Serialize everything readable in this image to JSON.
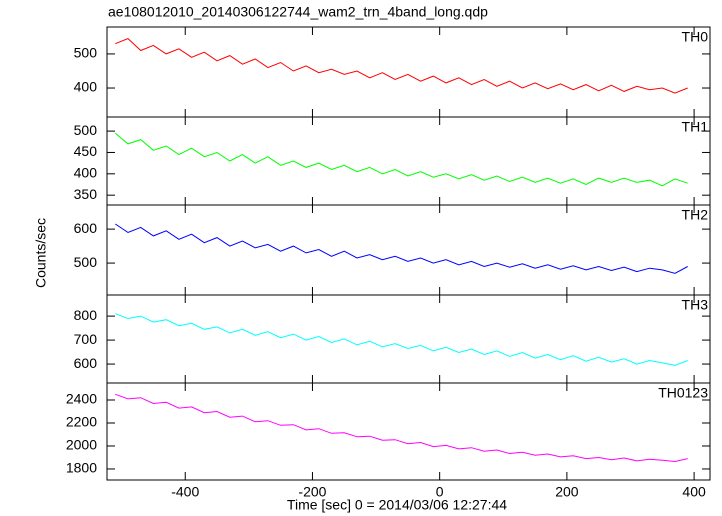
{
  "chart_data": {
    "type": "line",
    "title": "ae108012010_20140306122744_wam2_trn_4band_long.qdp",
    "xlabel": "Time [sec] 0 = 2014/03/06 12:27:44",
    "ylabel": "Counts/sec",
    "x": [
      -510,
      -490,
      -470,
      -450,
      -430,
      -410,
      -390,
      -370,
      -350,
      -330,
      -310,
      -290,
      -270,
      -250,
      -230,
      -210,
      -190,
      -170,
      -150,
      -130,
      -110,
      -90,
      -70,
      -50,
      -30,
      -10,
      10,
      30,
      50,
      70,
      90,
      110,
      130,
      150,
      170,
      190,
      210,
      230,
      250,
      270,
      290,
      310,
      330,
      350,
      370,
      390
    ],
    "xlim": [
      -523,
      425
    ],
    "xticks": [
      -400,
      -200,
      0,
      200,
      400
    ],
    "series": [
      {
        "name": "TH0",
        "color": "#ff0000",
        "ylim": [
          315,
          579
        ],
        "yticks": [
          400,
          500
        ],
        "values": [
          530,
          545,
          510,
          525,
          500,
          515,
          490,
          505,
          480,
          495,
          470,
          485,
          460,
          475,
          450,
          465,
          445,
          455,
          440,
          450,
          430,
          445,
          425,
          440,
          420,
          435,
          415,
          430,
          410,
          425,
          405,
          420,
          400,
          415,
          398,
          412,
          395,
          410,
          392,
          408,
          390,
          405,
          395,
          400,
          385,
          400
        ]
      },
      {
        "name": "TH1",
        "color": "#00ff00",
        "ylim": [
          327,
          533
        ],
        "yticks": [
          350,
          400,
          450,
          500
        ],
        "values": [
          495,
          470,
          480,
          455,
          465,
          445,
          460,
          440,
          450,
          430,
          445,
          425,
          440,
          420,
          430,
          415,
          425,
          410,
          420,
          405,
          415,
          400,
          410,
          395,
          405,
          392,
          400,
          388,
          398,
          385,
          395,
          382,
          392,
          380,
          390,
          378,
          388,
          375,
          390,
          380,
          390,
          380,
          385,
          372,
          388,
          378
        ]
      },
      {
        "name": "TH2",
        "color": "#0000ff",
        "ylim": [
          406,
          671
        ],
        "yticks": [
          500,
          600
        ],
        "values": [
          615,
          590,
          605,
          580,
          595,
          570,
          585,
          560,
          575,
          550,
          565,
          545,
          555,
          535,
          550,
          530,
          540,
          520,
          535,
          515,
          525,
          510,
          520,
          505,
          515,
          500,
          510,
          495,
          505,
          490,
          500,
          488,
          498,
          485,
          495,
          482,
          492,
          480,
          490,
          478,
          488,
          475,
          485,
          480,
          470,
          490
        ]
      },
      {
        "name": "TH3",
        "color": "#00ffff",
        "ylim": [
          521,
          888
        ],
        "yticks": [
          600,
          700,
          800
        ],
        "values": [
          810,
          790,
          800,
          775,
          785,
          760,
          770,
          745,
          755,
          730,
          745,
          720,
          735,
          710,
          725,
          700,
          715,
          690,
          705,
          680,
          695,
          672,
          685,
          665,
          678,
          655,
          670,
          648,
          662,
          640,
          655,
          632,
          648,
          625,
          640,
          618,
          635,
          612,
          628,
          608,
          622,
          600,
          615,
          605,
          595,
          615
        ]
      },
      {
        "name": "TH0123",
        "color": "#ff00ff",
        "ylim": [
          1704,
          2548
        ],
        "yticks": [
          1800,
          2000,
          2200,
          2400
        ],
        "values": [
          2450,
          2410,
          2420,
          2370,
          2380,
          2330,
          2340,
          2290,
          2300,
          2250,
          2260,
          2210,
          2220,
          2180,
          2185,
          2140,
          2150,
          2110,
          2115,
          2080,
          2085,
          2050,
          2055,
          2020,
          2030,
          1995,
          2005,
          1975,
          1985,
          1955,
          1965,
          1935,
          1945,
          1920,
          1930,
          1905,
          1915,
          1890,
          1900,
          1880,
          1895,
          1870,
          1885,
          1875,
          1865,
          1890
        ]
      }
    ]
  }
}
